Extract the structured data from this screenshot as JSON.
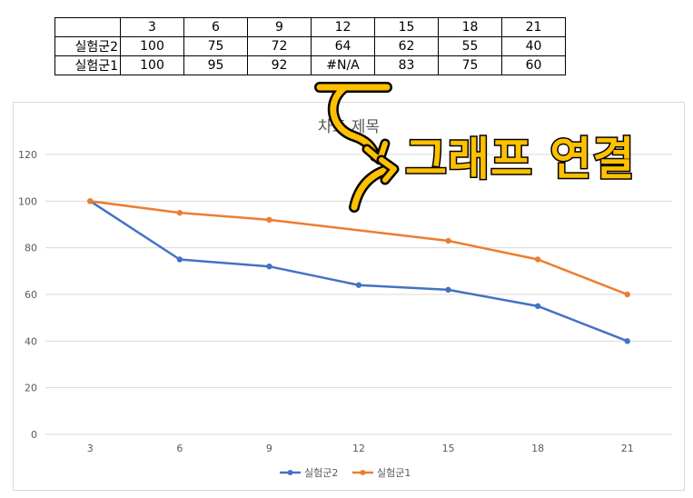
{
  "table": {
    "header": [
      "",
      "3",
      "6",
      "9",
      "12",
      "15",
      "18",
      "21"
    ],
    "rows": [
      {
        "label": "실험군2",
        "cells": [
          "100",
          "75",
          "72",
          "64",
          "62",
          "55",
          "40"
        ]
      },
      {
        "label": "실험군1",
        "cells": [
          "100",
          "95",
          "92",
          "#N/A",
          "83",
          "75",
          "60"
        ]
      }
    ]
  },
  "annotation": {
    "text": "그래프 연결",
    "color": "#ffc000"
  },
  "chart_data": {
    "type": "line",
    "title": "차트 제목",
    "categories": [
      "3",
      "6",
      "9",
      "12",
      "15",
      "18",
      "21"
    ],
    "series": [
      {
        "name": "실험군2",
        "color": "#4472c4",
        "values": [
          100,
          75,
          72,
          64,
          62,
          55,
          40
        ]
      },
      {
        "name": "실험군1",
        "color": "#ed7d31",
        "values": [
          100,
          95,
          92,
          null,
          83,
          75,
          60
        ],
        "connect_gaps": true
      }
    ],
    "ylim": [
      0,
      120
    ],
    "yticks": [
      0,
      20,
      40,
      60,
      80,
      100,
      120
    ],
    "grid": true,
    "legend": "bottom"
  }
}
